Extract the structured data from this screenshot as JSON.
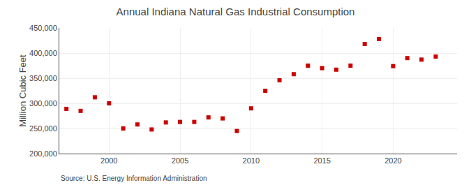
{
  "chart_data": {
    "type": "scatter",
    "title": "Annual Indiana Natural Gas Industrial Consumption",
    "ylabel": "Million Cubic Feet",
    "source": "Source: U.S. Energy Information Administration",
    "x": [
      1997,
      1998,
      1999,
      2000,
      2001,
      2002,
      2003,
      2004,
      2005,
      2006,
      2007,
      2008,
      2009,
      2010,
      2011,
      2012,
      2013,
      2014,
      2015,
      2016,
      2017,
      2018,
      2019,
      2020,
      2021,
      2022,
      2023
    ],
    "values": [
      289000,
      285000,
      312000,
      300000,
      250000,
      258000,
      248000,
      262000,
      263000,
      263000,
      272000,
      270000,
      245000,
      290000,
      325000,
      346000,
      358000,
      375000,
      370000,
      367000,
      375000,
      418000,
      428000,
      374000,
      390000,
      387000,
      393000
    ],
    "color": "#cc0000",
    "marker": "square",
    "xlim": [
      1996.5,
      2024.5
    ],
    "xticks": [
      2000,
      2005,
      2010,
      2015,
      2020
    ],
    "ylim": [
      200000,
      450000
    ],
    "yticks": [
      {
        "value": 200000,
        "label": "200,000"
      },
      {
        "value": 250000,
        "label": "250,000"
      },
      {
        "value": 300000,
        "label": "300,000"
      },
      {
        "value": 350000,
        "label": "350,000"
      },
      {
        "value": 400000,
        "label": "400,000"
      },
      {
        "value": 450000,
        "label": "450,000"
      }
    ],
    "grid": true
  }
}
